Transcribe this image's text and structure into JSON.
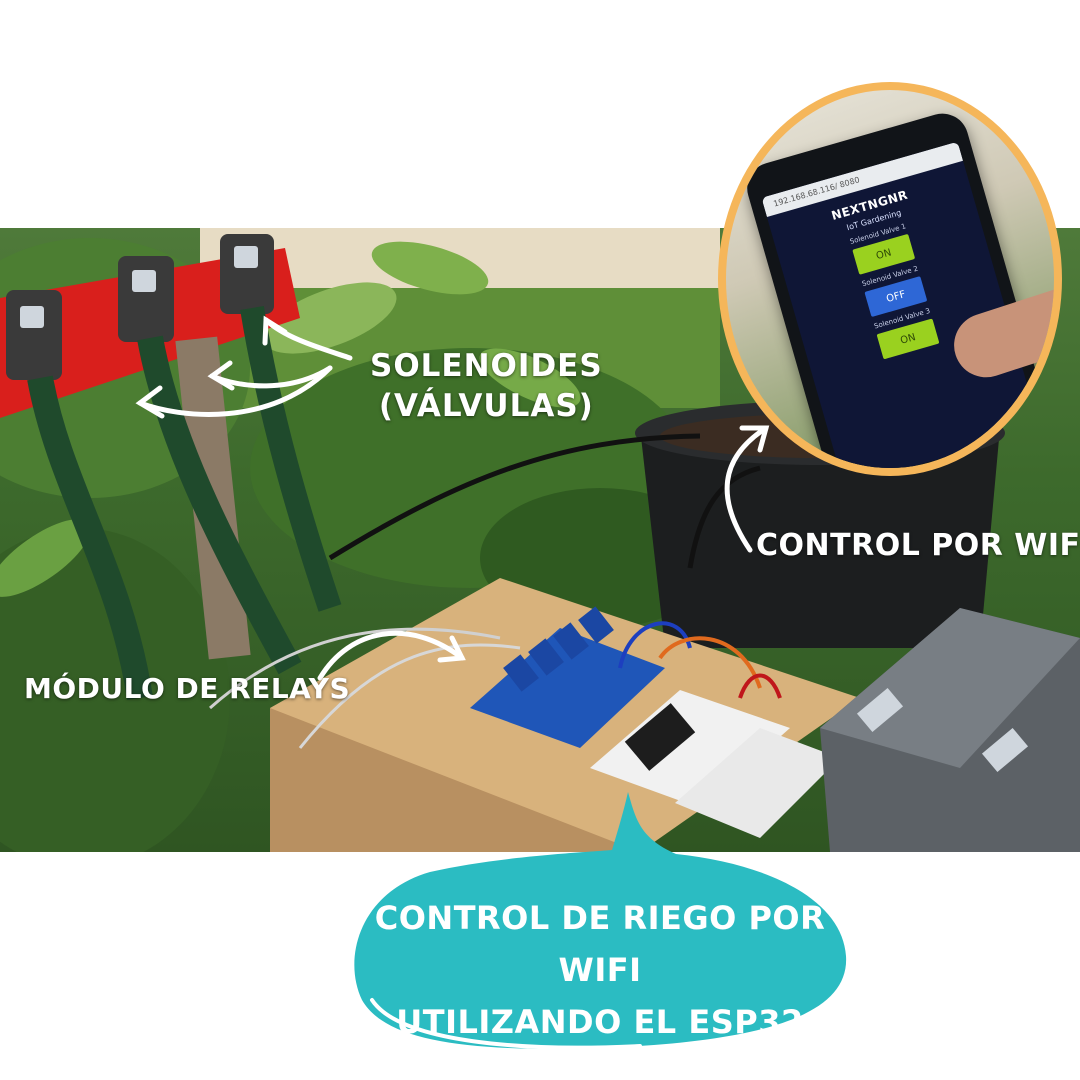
{
  "phone_screen": {
    "url": "192.168.68.116/ 8080",
    "app_name": "NEXTNGNR",
    "subtitle": "IoT Gardening",
    "valves": [
      {
        "label": "Solenoid Valve 1",
        "state": "ON"
      },
      {
        "label": "Solenoid Valve 2",
        "state": "OFF"
      },
      {
        "label": "Solenoid Valve 3",
        "state": "ON"
      }
    ]
  },
  "callouts": {
    "solenoides_line1": "SOLENOIDES",
    "solenoides_line2": "(VÁLVULAS)",
    "wifi_control": "CONTROL POR WIFI",
    "relay_module": "MÓDULO DE RELAYS"
  },
  "caption": {
    "line1": "CONTROL DE RIEGO POR WIFI",
    "line2": "UTILIZANDO EL ESP32"
  },
  "colors": {
    "inset_border": "#f5b65a",
    "bubble": "#2bbcc2",
    "label_text": "#ffffff",
    "valve_on": "#9ad11f",
    "valve_off": "#2e67d6"
  }
}
